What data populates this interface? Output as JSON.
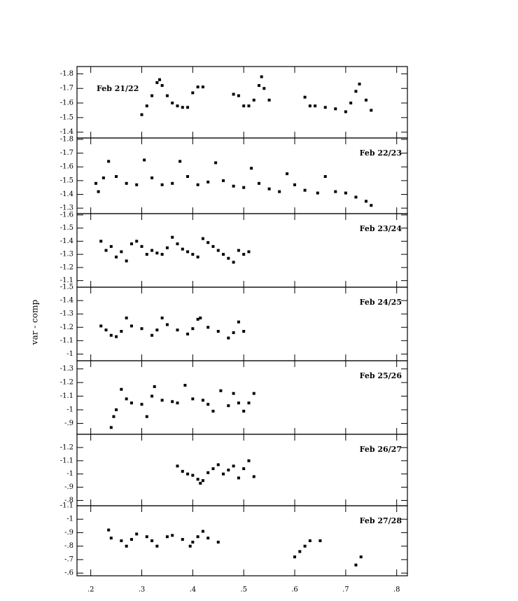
{
  "ylabel": "var - comp",
  "chart_data": [
    {
      "type": "scatter",
      "annotation": "Feb 21/22",
      "annotation_position": "left",
      "color": "#000000",
      "xlim": [
        0.173,
        0.821
      ],
      "ylim": [
        -1.36,
        -1.85
      ],
      "xticks": [
        0.2,
        0.3,
        0.4,
        0.5,
        0.6,
        0.7,
        0.8
      ],
      "yticks": [
        -1.8,
        -1.7,
        -1.6,
        -1.5,
        -1.4
      ],
      "x": [
        0.3,
        0.31,
        0.32,
        0.33,
        0.335,
        0.34,
        0.35,
        0.36,
        0.37,
        0.38,
        0.39,
        0.4,
        0.41,
        0.42,
        0.48,
        0.49,
        0.5,
        0.51,
        0.52,
        0.53,
        0.535,
        0.54,
        0.55,
        0.62,
        0.63,
        0.64,
        0.66,
        0.68,
        0.7,
        0.71,
        0.72,
        0.727,
        0.74,
        0.75
      ],
      "y": [
        -1.52,
        -1.58,
        -1.65,
        -1.74,
        -1.76,
        -1.72,
        -1.65,
        -1.6,
        -1.58,
        -1.57,
        -1.57,
        -1.67,
        -1.71,
        -1.71,
        -1.66,
        -1.65,
        -1.58,
        -1.58,
        -1.62,
        -1.72,
        -1.78,
        -1.7,
        -1.62,
        -1.64,
        -1.58,
        -1.58,
        -1.57,
        -1.56,
        -1.54,
        -1.6,
        -1.68,
        -1.73,
        -1.62,
        -1.55
      ]
    },
    {
      "type": "scatter",
      "annotation": "Feb 22/23",
      "annotation_position": "right",
      "color": "#000000",
      "xlim": [
        0.173,
        0.821
      ],
      "ylim": [
        -1.26,
        -1.81
      ],
      "xticks": [
        0.2,
        0.3,
        0.4,
        0.5,
        0.6,
        0.7,
        0.8
      ],
      "yticks": [
        -1.8,
        -1.7,
        -1.6,
        -1.5,
        -1.4,
        -1.3
      ],
      "x": [
        0.21,
        0.215,
        0.225,
        0.235,
        0.25,
        0.27,
        0.29,
        0.305,
        0.32,
        0.34,
        0.36,
        0.375,
        0.39,
        0.41,
        0.43,
        0.445,
        0.46,
        0.48,
        0.5,
        0.515,
        0.53,
        0.55,
        0.57,
        0.585,
        0.6,
        0.62,
        0.645,
        0.66,
        0.68,
        0.7,
        0.72,
        0.74,
        0.75
      ],
      "y": [
        -1.48,
        -1.42,
        -1.52,
        -1.64,
        -1.53,
        -1.48,
        -1.47,
        -1.65,
        -1.52,
        -1.47,
        -1.48,
        -1.64,
        -1.53,
        -1.47,
        -1.49,
        -1.63,
        -1.5,
        -1.46,
        -1.45,
        -1.59,
        -1.48,
        -1.44,
        -1.42,
        -1.55,
        -1.47,
        -1.43,
        -1.41,
        -1.53,
        -1.42,
        -1.41,
        -1.38,
        -1.35,
        -1.32
      ]
    },
    {
      "type": "scatter",
      "annotation": "Feb 23/24",
      "annotation_position": "right",
      "color": "#000000",
      "xlim": [
        0.173,
        0.821
      ],
      "ylim": [
        -1.05,
        -1.61
      ],
      "xticks": [
        0.2,
        0.3,
        0.4,
        0.5,
        0.6,
        0.7,
        0.8
      ],
      "yticks": [
        -1.6,
        -1.5,
        -1.4,
        -1.3,
        -1.2,
        -1.1
      ],
      "x": [
        0.22,
        0.23,
        0.24,
        0.25,
        0.26,
        0.27,
        0.28,
        0.29,
        0.3,
        0.31,
        0.32,
        0.33,
        0.34,
        0.35,
        0.36,
        0.37,
        0.38,
        0.39,
        0.4,
        0.41,
        0.42,
        0.43,
        0.44,
        0.45,
        0.46,
        0.47,
        0.48,
        0.49,
        0.5,
        0.51
      ],
      "y": [
        -1.4,
        -1.33,
        -1.36,
        -1.28,
        -1.32,
        -1.25,
        -1.38,
        -1.4,
        -1.36,
        -1.3,
        -1.33,
        -1.31,
        -1.3,
        -1.35,
        -1.43,
        -1.38,
        -1.34,
        -1.32,
        -1.3,
        -1.28,
        -1.42,
        -1.39,
        -1.36,
        -1.33,
        -1.3,
        -1.27,
        -1.24,
        -1.33,
        -1.3,
        -1.32
      ]
    },
    {
      "type": "scatter",
      "annotation": "Feb 24/25",
      "annotation_position": "right",
      "color": "#000000",
      "xlim": [
        0.173,
        0.821
      ],
      "ylim": [
        -0.95,
        -1.5
      ],
      "xticks": [
        0.2,
        0.3,
        0.4,
        0.5,
        0.6,
        0.7,
        0.8
      ],
      "yticks": [
        -1.5,
        -1.4,
        -1.3,
        -1.2,
        -1.1,
        -1
      ],
      "x": [
        0.22,
        0.23,
        0.24,
        0.25,
        0.26,
        0.27,
        0.28,
        0.3,
        0.32,
        0.33,
        0.34,
        0.35,
        0.37,
        0.39,
        0.4,
        0.41,
        0.415,
        0.43,
        0.45,
        0.47,
        0.48,
        0.49,
        0.5
      ],
      "y": [
        -1.21,
        -1.18,
        -1.14,
        -1.13,
        -1.17,
        -1.27,
        -1.21,
        -1.19,
        -1.14,
        -1.18,
        -1.27,
        -1.22,
        -1.18,
        -1.15,
        -1.19,
        -1.26,
        -1.27,
        -1.2,
        -1.17,
        -1.12,
        -1.16,
        -1.24,
        -1.17
      ]
    },
    {
      "type": "scatter",
      "annotation": "Feb 25/26",
      "annotation_position": "right",
      "color": "#000000",
      "xlim": [
        0.173,
        0.821
      ],
      "ylim": [
        -0.82,
        -1.36
      ],
      "xticks": [
        0.2,
        0.3,
        0.4,
        0.5,
        0.6,
        0.7,
        0.8
      ],
      "yticks": [
        -1.3,
        -1.2,
        -1.1,
        -1,
        {
          "value": -0.9,
          "label": "-.9"
        }
      ],
      "x": [
        0.24,
        0.245,
        0.25,
        0.26,
        0.27,
        0.28,
        0.3,
        0.31,
        0.32,
        0.325,
        0.34,
        0.36,
        0.37,
        0.385,
        0.4,
        0.42,
        0.43,
        0.44,
        0.455,
        0.47,
        0.48,
        0.49,
        0.5,
        0.51,
        0.52
      ],
      "y": [
        -0.87,
        -0.95,
        -1.0,
        -1.15,
        -1.08,
        -1.05,
        -1.04,
        -0.95,
        -1.1,
        -1.17,
        -1.07,
        -1.06,
        -1.05,
        -1.18,
        -1.08,
        -1.07,
        -1.04,
        -0.99,
        -1.14,
        -1.03,
        -1.12,
        -1.05,
        -0.99,
        -1.05,
        -1.12
      ]
    },
    {
      "type": "scatter",
      "annotation": "Feb 26/27",
      "annotation_position": "right",
      "color": "#000000",
      "xlim": [
        0.173,
        0.821
      ],
      "ylim": [
        -0.76,
        -1.3
      ],
      "xticks": [
        0.2,
        0.3,
        0.4,
        0.5,
        0.6,
        0.7,
        0.8
      ],
      "yticks": [
        -1.2,
        -1.1,
        -1,
        {
          "value": -0.9,
          "label": "-.9"
        },
        {
          "value": -0.8,
          "label": "-.8"
        }
      ],
      "x": [
        0.37,
        0.38,
        0.39,
        0.4,
        0.41,
        0.415,
        0.42,
        0.43,
        0.44,
        0.45,
        0.46,
        0.47,
        0.48,
        0.49,
        0.5,
        0.51,
        0.52
      ],
      "y": [
        -1.06,
        -1.02,
        -1.0,
        -0.99,
        -0.96,
        -0.93,
        -0.95,
        -1.01,
        -1.04,
        -1.07,
        -1.0,
        -1.03,
        -1.06,
        -0.97,
        -1.04,
        -1.1,
        -0.98
      ]
    },
    {
      "type": "scatter",
      "annotation": "Feb 27/28",
      "annotation_position": "right",
      "color": "#000000",
      "xlim": [
        0.173,
        0.821
      ],
      "ylim": [
        -0.58,
        -1.1
      ],
      "xticks": [
        {
          "value": 0.2,
          "label": ".2"
        },
        {
          "value": 0.3,
          "label": ".3"
        },
        {
          "value": 0.4,
          "label": ".4"
        },
        {
          "value": 0.5,
          "label": ".5"
        },
        {
          "value": 0.6,
          "label": ".6"
        },
        {
          "value": 0.7,
          "label": ".7"
        },
        {
          "value": 0.8,
          "label": ".8"
        }
      ],
      "yticks": [
        -1.1,
        -1,
        {
          "value": -0.9,
          "label": "-.9"
        },
        {
          "value": -0.8,
          "label": "-.8"
        },
        {
          "value": -0.7,
          "label": "-.7"
        },
        {
          "value": -0.6,
          "label": "-.6"
        }
      ],
      "x": [
        0.235,
        0.24,
        0.26,
        0.27,
        0.28,
        0.29,
        0.31,
        0.32,
        0.33,
        0.35,
        0.36,
        0.38,
        0.395,
        0.4,
        0.41,
        0.42,
        0.43,
        0.45,
        0.6,
        0.61,
        0.62,
        0.63,
        0.65,
        0.72,
        0.73
      ],
      "y": [
        -0.92,
        -0.86,
        -0.84,
        -0.8,
        -0.85,
        -0.89,
        -0.87,
        -0.84,
        -0.8,
        -0.87,
        -0.88,
        -0.85,
        -0.8,
        -0.83,
        -0.87,
        -0.91,
        -0.86,
        -0.83,
        -0.72,
        -0.76,
        -0.8,
        -0.84,
        -0.84,
        -0.66,
        -0.72
      ]
    }
  ]
}
